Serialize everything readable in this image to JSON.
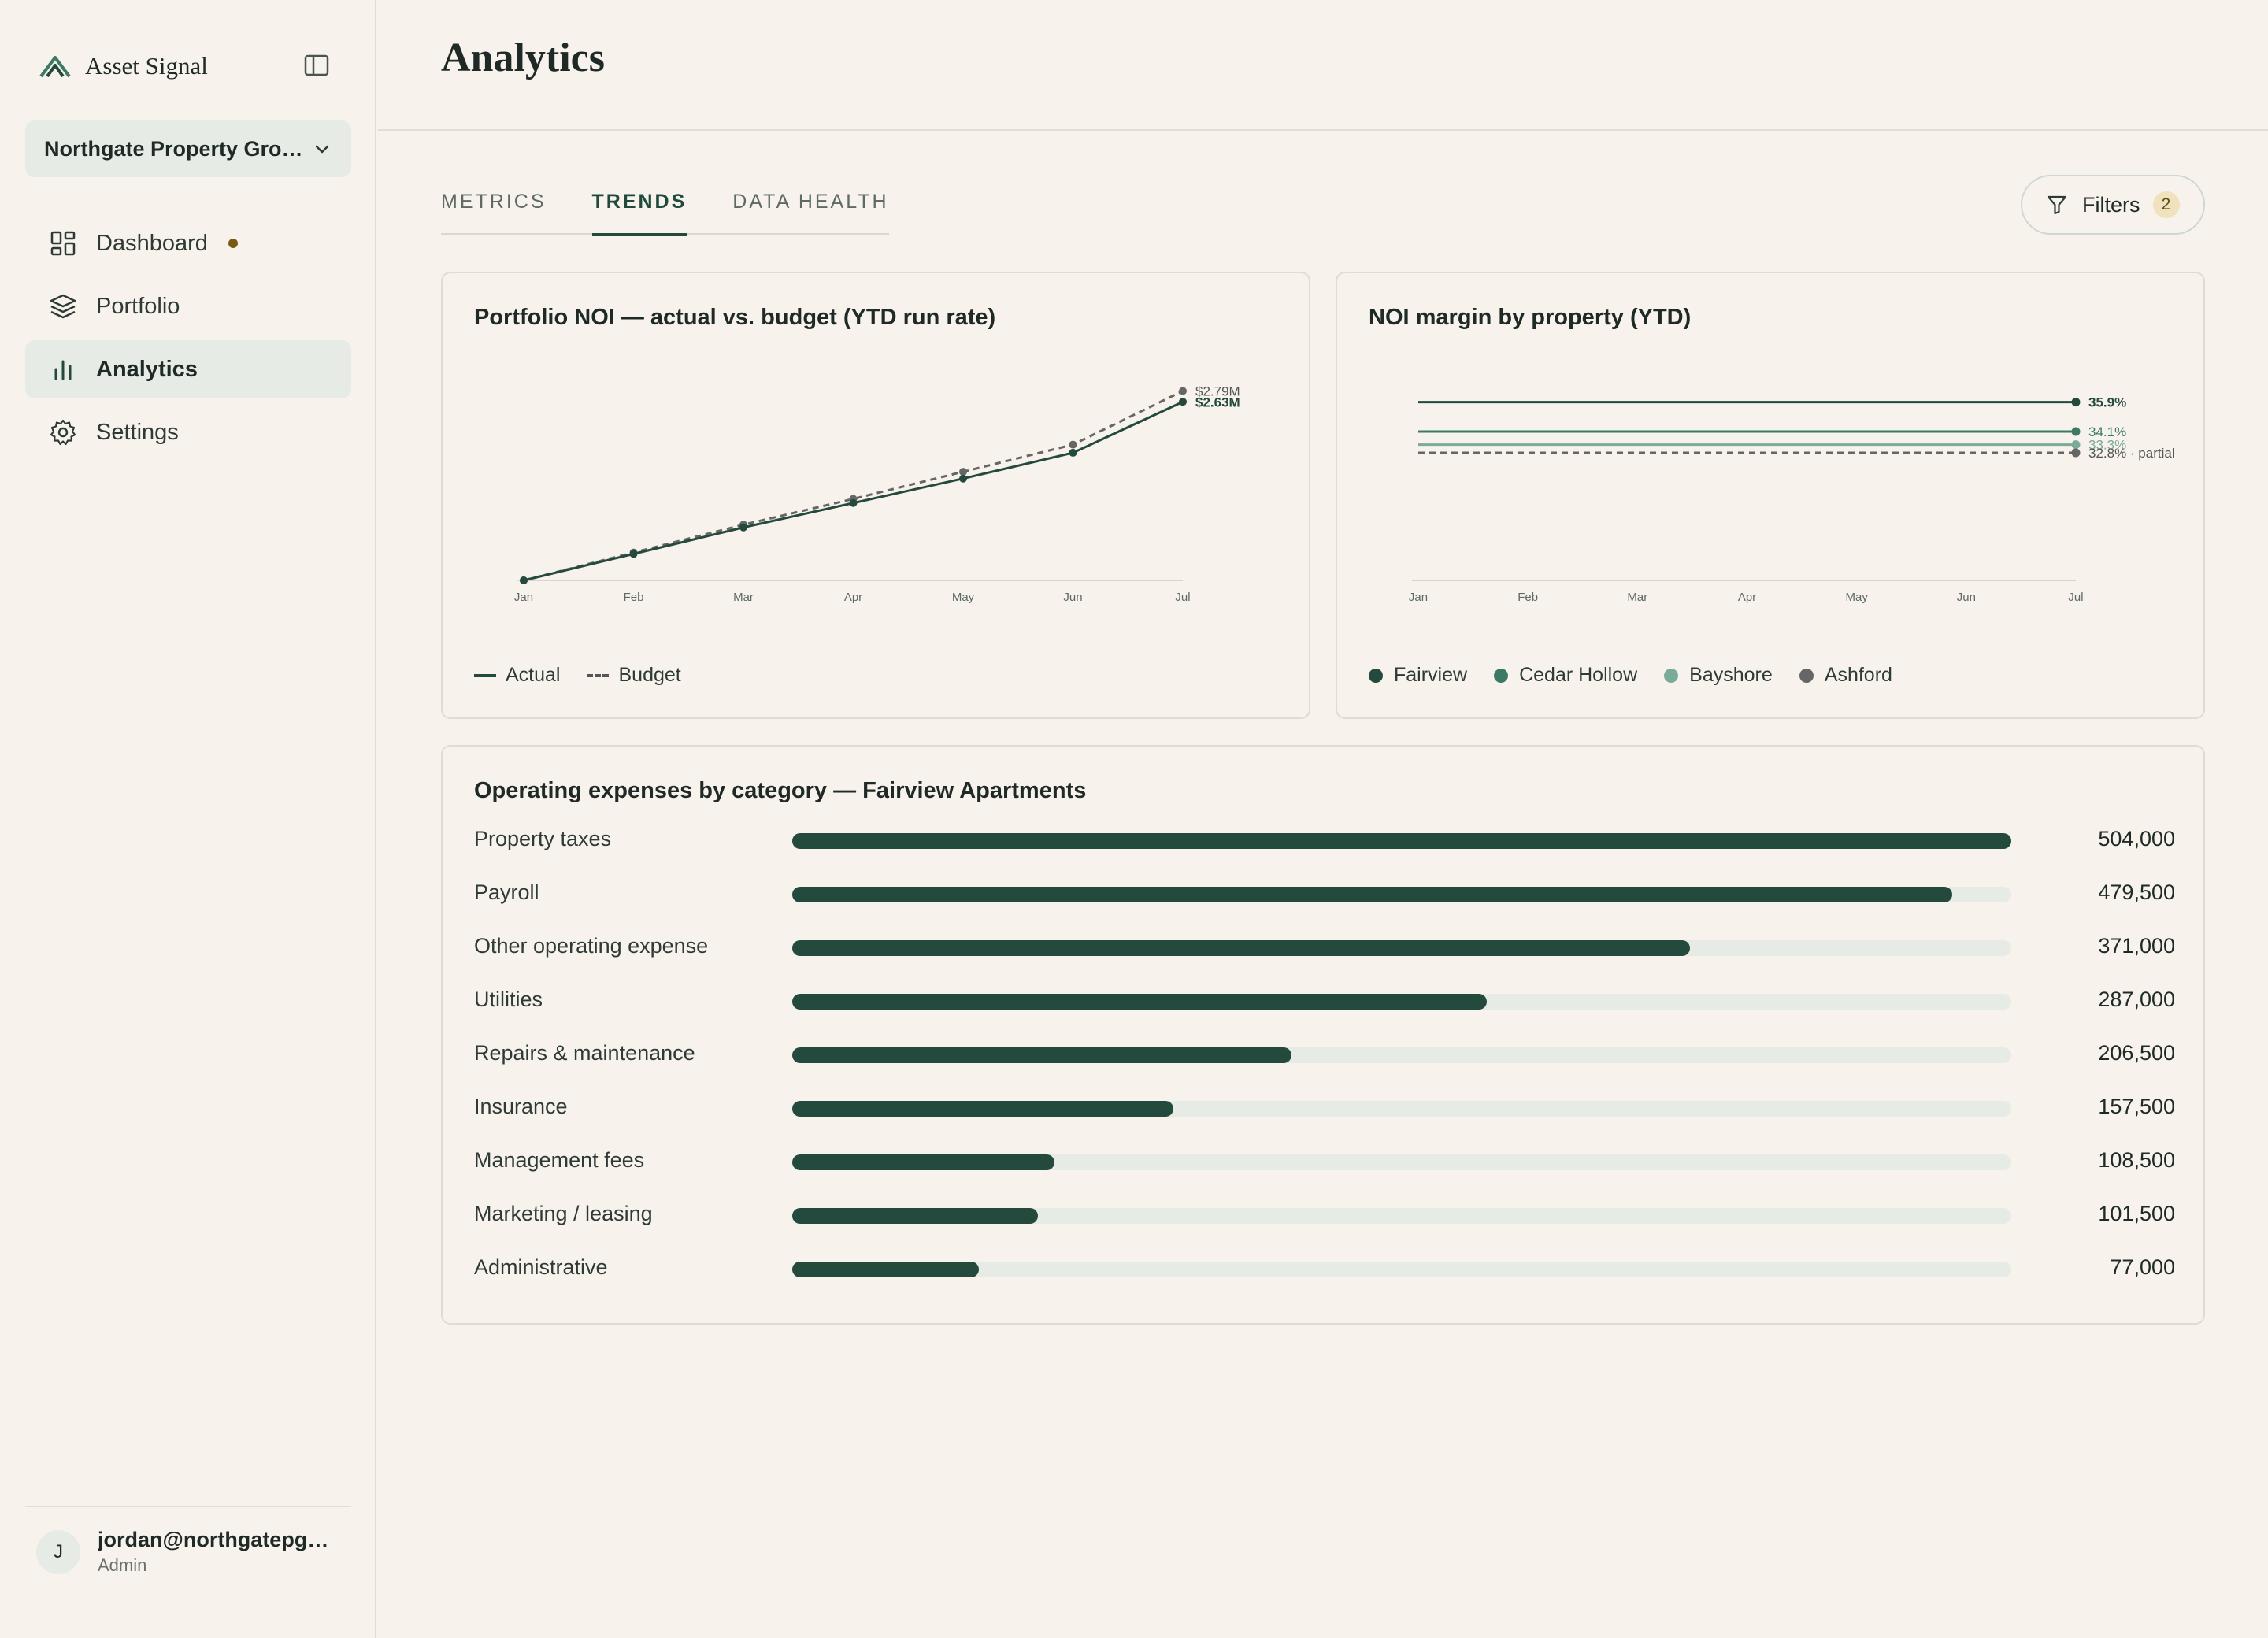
{
  "app": {
    "name": "Asset Signal",
    "org": "Northgate Property Group"
  },
  "nav": {
    "items": [
      {
        "label": "Dashboard",
        "icon": "dashboard-icon"
      },
      {
        "label": "Portfolio",
        "icon": "layers-icon"
      },
      {
        "label": "Analytics",
        "icon": "bar-chart-icon"
      },
      {
        "label": "Settings",
        "icon": "gear-icon"
      }
    ],
    "active": "Analytics"
  },
  "user": {
    "email": "jordan@northgatepg.com",
    "role": "Admin",
    "initial": "J"
  },
  "page": {
    "title": "Analytics",
    "tabs": [
      "METRICS",
      "TRENDS",
      "DATA HEALTH"
    ],
    "active_tab": "TRENDS",
    "filters_label": "Filters",
    "filters_count": "2"
  },
  "colors": {
    "accent": "#234a3d",
    "cedar": "#3d7a66",
    "bayshore": "#7aab98",
    "ashford": "#666666",
    "budget": "#666666"
  },
  "chart_data": [
    {
      "type": "line",
      "title": "Portfolio NOI — actual vs. budget (YTD run rate)",
      "categories": [
        "Jan",
        "Feb",
        "Mar",
        "Apr",
        "May",
        "Jun",
        "Jul"
      ],
      "series": [
        {
          "name": "Actual",
          "values": [
            0.0,
            0.39,
            0.78,
            1.14,
            1.5,
            1.88,
            2.63
          ],
          "end_label": "$2.63M"
        },
        {
          "name": "Budget",
          "values": [
            0.0,
            0.41,
            0.82,
            1.2,
            1.6,
            2.0,
            2.79
          ],
          "end_label": "$2.79M"
        }
      ],
      "ylim": [
        0,
        2.9
      ]
    },
    {
      "type": "line",
      "title": "NOI margin by property (YTD)",
      "categories": [
        "Jan",
        "Feb",
        "Mar",
        "Apr",
        "May",
        "Jun",
        "Jul"
      ],
      "series": [
        {
          "name": "Fairview",
          "value": 35.9,
          "end_label": "35.9%"
        },
        {
          "name": "Cedar Hollow",
          "value": 34.1,
          "end_label": "34.1%"
        },
        {
          "name": "Bayshore",
          "value": 33.3,
          "end_label": "33.3%"
        },
        {
          "name": "Ashford",
          "value": 32.8,
          "end_label": "32.8% · partial",
          "dashed": true
        }
      ],
      "ylim": [
        25,
        38
      ]
    },
    {
      "type": "bar",
      "title": "Operating expenses by category — Fairview Apartments",
      "categories": [
        "Property taxes",
        "Payroll",
        "Other operating expense",
        "Utilities",
        "Repairs & maintenance",
        "Insurance",
        "Management fees",
        "Marketing / leasing",
        "Administrative"
      ],
      "values": [
        504000,
        479500,
        371000,
        287000,
        206500,
        157500,
        108500,
        101500,
        77000
      ],
      "labels": [
        "504,000",
        "479,500",
        "371,000",
        "287,000",
        "206,500",
        "157,500",
        "108,500",
        "101,500",
        "77,000"
      ],
      "xlim": [
        0,
        504000
      ]
    }
  ]
}
